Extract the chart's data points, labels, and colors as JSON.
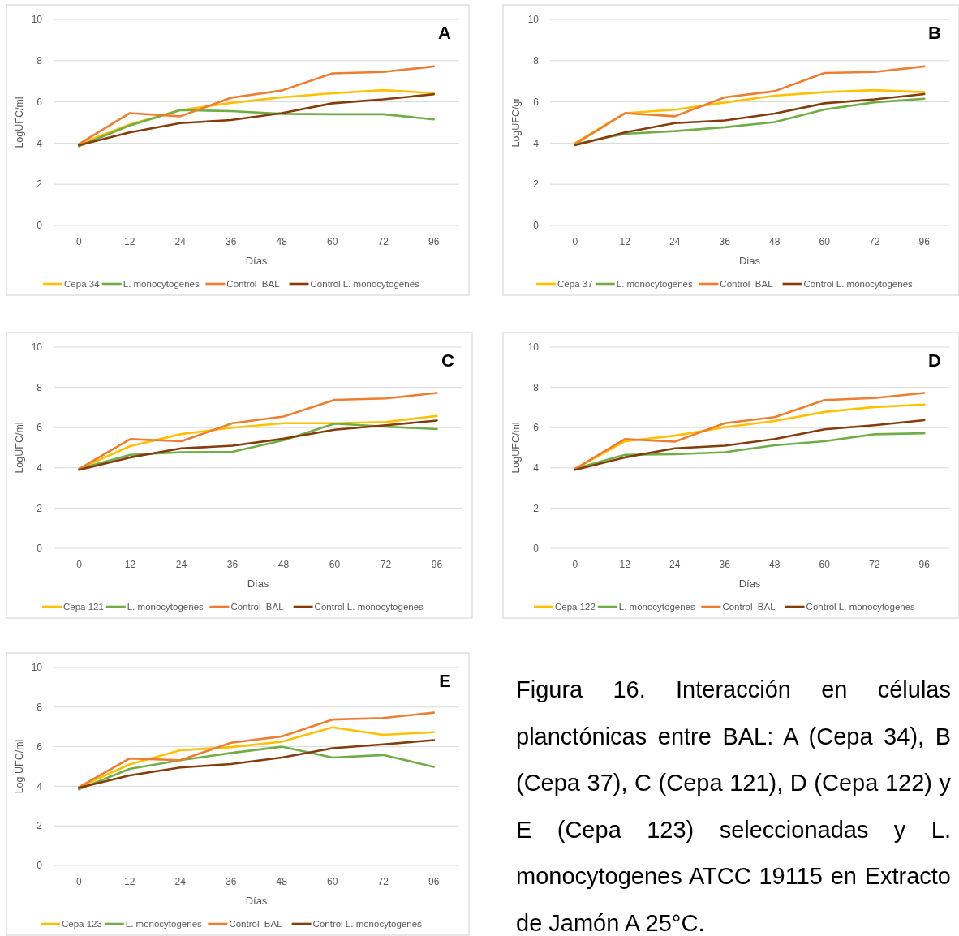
{
  "chart_data": [
    {
      "type": "line",
      "title": "A",
      "xlabel": "Días",
      "ylabel": "LogUFC/ml",
      "categories": [
        "0",
        "12",
        "24",
        "36",
        "48",
        "60",
        "72",
        "96"
      ],
      "ylim": [
        0,
        10
      ],
      "yticks": [
        0,
        2,
        4,
        6,
        8,
        10
      ],
      "grid": "y",
      "legend": "bottom",
      "marker": "none",
      "series": [
        {
          "name": "Cepa 34",
          "color": "#ffc000",
          "values": [
            3.95,
            4.9,
            5.6,
            5.95,
            6.22,
            6.42,
            6.57,
            6.42
          ]
        },
        {
          "name": "L. monocytogenes",
          "color": "#70ad47",
          "values": [
            3.85,
            4.85,
            5.6,
            5.55,
            5.42,
            5.4,
            5.4,
            5.15
          ]
        },
        {
          "name": "Control  BAL",
          "color": "#ed7d31",
          "values": [
            3.95,
            5.45,
            5.3,
            6.2,
            6.55,
            7.38,
            7.45,
            7.72
          ]
        },
        {
          "name": "Control L. monocytogenes",
          "color": "#843c0c",
          "values": [
            3.9,
            4.52,
            4.97,
            5.12,
            5.45,
            5.93,
            6.12,
            6.37
          ]
        }
      ]
    },
    {
      "type": "line",
      "title": "B",
      "xlabel": "Dias",
      "ylabel": "LogUFC/gr",
      "categories": [
        "0",
        "12",
        "24",
        "36",
        "48",
        "60",
        "72",
        "96"
      ],
      "ylim": [
        0,
        10
      ],
      "yticks": [
        0,
        2,
        4,
        6,
        8,
        10
      ],
      "grid": "y",
      "legend": "bottom",
      "marker": "none",
      "series": [
        {
          "name": "Cepa 37",
          "color": "#ffc000",
          "values": [
            4.0,
            5.45,
            5.62,
            5.97,
            6.3,
            6.47,
            6.57,
            6.47
          ]
        },
        {
          "name": "L. monocytogenes",
          "color": "#70ad47",
          "values": [
            3.95,
            4.45,
            4.58,
            4.77,
            5.02,
            5.63,
            5.98,
            6.15
          ]
        },
        {
          "name": "Control  BAL",
          "color": "#ed7d31",
          "values": [
            3.95,
            5.45,
            5.3,
            6.22,
            6.52,
            7.4,
            7.45,
            7.72
          ]
        },
        {
          "name": "Control L. monocytogenes",
          "color": "#843c0c",
          "values": [
            3.9,
            4.52,
            4.97,
            5.1,
            5.43,
            5.93,
            6.12,
            6.38
          ]
        }
      ]
    },
    {
      "type": "line",
      "title": "C",
      "xlabel": "Días",
      "ylabel": "LogUFC/ml",
      "categories": [
        "0",
        "12",
        "24",
        "36",
        "48",
        "60",
        "72",
        "96"
      ],
      "ylim": [
        0,
        10
      ],
      "yticks": [
        0,
        2,
        4,
        6,
        8,
        10
      ],
      "grid": "y",
      "legend": "bottom",
      "marker": "none",
      "series": [
        {
          "name": "Cepa 121",
          "color": "#ffc000",
          "values": [
            3.95,
            5.08,
            5.68,
            6.0,
            6.22,
            6.22,
            6.28,
            6.58
          ]
        },
        {
          "name": "L. monocytogenes",
          "color": "#70ad47",
          "values": [
            3.95,
            4.65,
            4.78,
            4.8,
            5.37,
            6.2,
            6.05,
            5.93
          ]
        },
        {
          "name": "Control  BAL",
          "color": "#ed7d31",
          "values": [
            3.95,
            5.43,
            5.32,
            6.22,
            6.55,
            7.38,
            7.45,
            7.72
          ]
        },
        {
          "name": "Control L. monocytogenes",
          "color": "#843c0c",
          "values": [
            3.9,
            4.52,
            4.97,
            5.1,
            5.45,
            5.9,
            6.12,
            6.35
          ]
        }
      ]
    },
    {
      "type": "line",
      "title": "D",
      "xlabel": "Días",
      "ylabel": "LogUFC/ml",
      "categories": [
        "0",
        "12",
        "24",
        "36",
        "48",
        "60",
        "72",
        "96"
      ],
      "ylim": [
        0,
        10
      ],
      "yticks": [
        0,
        2,
        4,
        6,
        8,
        10
      ],
      "grid": "y",
      "legend": "bottom",
      "marker": "none",
      "series": [
        {
          "name": "Cepa 122",
          "color": "#ffc000",
          "values": [
            3.95,
            5.32,
            5.6,
            6.02,
            6.33,
            6.78,
            7.02,
            7.15
          ]
        },
        {
          "name": "L. monocytogenes",
          "color": "#70ad47",
          "values": [
            3.95,
            4.65,
            4.68,
            4.78,
            5.12,
            5.32,
            5.67,
            5.72
          ]
        },
        {
          "name": "Control  BAL",
          "color": "#ed7d31",
          "values": [
            3.95,
            5.43,
            5.3,
            6.22,
            6.52,
            7.37,
            7.47,
            7.72
          ]
        },
        {
          "name": "Control L. monocytogenes",
          "color": "#843c0c",
          "values": [
            3.9,
            4.52,
            4.97,
            5.1,
            5.43,
            5.92,
            6.12,
            6.37
          ]
        }
      ]
    },
    {
      "type": "line",
      "title": "E",
      "xlabel": "Días",
      "ylabel": "Log UFC/ml",
      "categories": [
        "0",
        "12",
        "24",
        "36",
        "48",
        "60",
        "72",
        "96"
      ],
      "ylim": [
        0,
        10
      ],
      "yticks": [
        0,
        2,
        4,
        6,
        8,
        10
      ],
      "grid": "y",
      "legend": "bottom",
      "marker": "none",
      "annotations": [
        "Figura 16. Interacción en células planctónicas entre BAL: A (Cepa 34), B (Cepa 37), C (Cepa 121), D (Cepa 122) y E (Cepa 123) seleccionadas y L. monocytogenes ATCC 19115 en Extracto de Jamón A 25°C."
      ],
      "series": [
        {
          "name": "Cepa 123",
          "color": "#ffc000",
          "values": [
            3.95,
            5.1,
            5.82,
            5.98,
            6.25,
            6.98,
            6.6,
            6.73
          ]
        },
        {
          "name": "L. monocytogenes",
          "color": "#70ad47",
          "values": [
            3.85,
            4.88,
            5.32,
            5.68,
            6.0,
            5.45,
            5.58,
            4.98
          ]
        },
        {
          "name": "Control  BAL",
          "color": "#ed7d31",
          "values": [
            3.95,
            5.4,
            5.32,
            6.2,
            6.52,
            7.37,
            7.45,
            7.72
          ]
        },
        {
          "name": "Control L. monocytogenes",
          "color": "#843c0c",
          "values": [
            3.92,
            4.55,
            4.95,
            5.12,
            5.45,
            5.92,
            6.12,
            6.33
          ]
        }
      ]
    }
  ]
}
